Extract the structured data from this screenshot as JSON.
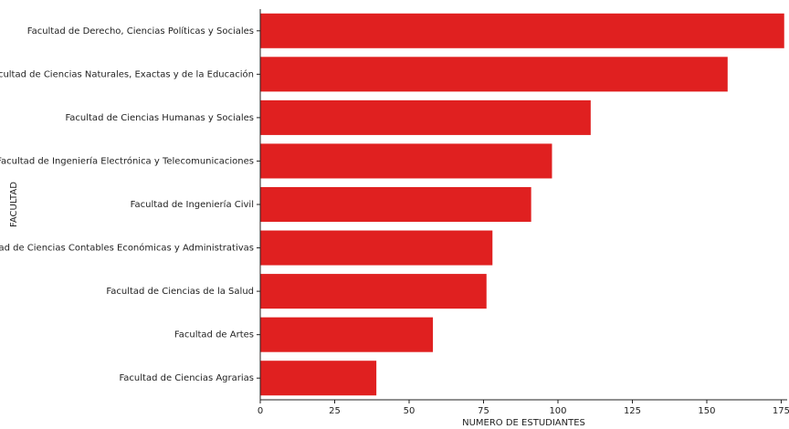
{
  "chart_data": {
    "type": "bar",
    "orientation": "horizontal",
    "categories": [
      "Facultad de Derecho, Ciencias Políticas y Sociales",
      "Facultad de Ciencias Naturales, Exactas y de la Educación",
      "Facultad de Ciencias Humanas y Sociales",
      "Facultad de Ingeniería Electrónica y Telecomunicaciones",
      "Facultad de Ingeniería Civil",
      "Facultad de Ciencias Contables Económicas y Administrativas",
      "Facultad de Ciencias de la Salud",
      "Facultad de Artes",
      "Facultad de Ciencias Agrarias"
    ],
    "values": [
      176,
      157,
      111,
      98,
      91,
      78,
      76,
      58,
      39
    ],
    "xlabel": "NUMERO DE ESTUDIANTES",
    "ylabel": "FACULTAD",
    "xlim": [
      0,
      177
    ],
    "xticks": [
      0,
      25,
      50,
      75,
      100,
      125,
      150,
      175
    ],
    "bar_color": "#e02020",
    "grid": false
  }
}
